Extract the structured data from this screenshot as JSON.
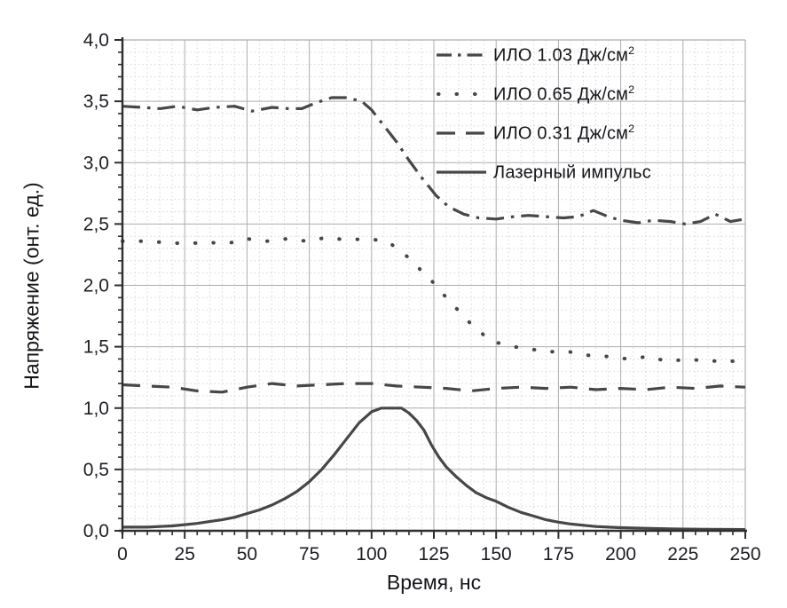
{
  "colors": {
    "line": "#474747",
    "grid_major": "#aeaeae",
    "grid_minor": "#d7d7d7",
    "axis": "#2e2e2e",
    "text": "#1d1d24"
  },
  "legend": [
    {
      "label": "ИЛО 1.03 Дж/см",
      "sup": "2",
      "style": "dashdot"
    },
    {
      "label": "ИЛО 0.65 Дж/см",
      "sup": "2",
      "style": "dotted"
    },
    {
      "label": "ИЛО 0.31 Дж/см",
      "sup": "2",
      "style": "dashed"
    },
    {
      "label": "Лазерный импульс",
      "sup": "",
      "style": "solid"
    }
  ],
  "chart_data": {
    "type": "line",
    "title": "",
    "xlabel": "Время, нс",
    "ylabel": "Напряжение (онт. ед.)",
    "xlim": [
      0,
      250
    ],
    "ylim": [
      0.0,
      4.0
    ],
    "x_ticks": [
      0,
      25,
      50,
      75,
      100,
      125,
      150,
      175,
      200,
      225,
      250
    ],
    "x_tick_labels": [
      "0",
      "25",
      "50",
      "75",
      "100",
      "125",
      "150",
      "175",
      "200",
      "225",
      "250"
    ],
    "y_ticks": [
      0,
      0.5,
      1,
      1.5,
      2,
      2.5,
      3,
      3.5,
      4
    ],
    "y_tick_labels": [
      "0,0",
      "0,5",
      "1,0",
      "1,5",
      "2,0",
      "2,5",
      "3,0",
      "3,5",
      "4,0"
    ],
    "x_minor_step": 5,
    "y_minor_step": 0.1,
    "grid": {
      "major": true,
      "minor": true
    },
    "legend_position": "top-right-inside",
    "series": [
      {
        "name": "ИЛО 1.03 Дж/см²",
        "style": "dashdot",
        "x": [
          0,
          8,
          15,
          22,
          30,
          37,
          45,
          52,
          60,
          67,
          72,
          78,
          84,
          90,
          96,
          100,
          105,
          110,
          115,
          120,
          126,
          131,
          137,
          143,
          150,
          157,
          163,
          170,
          177,
          183,
          189,
          195,
          200,
          207,
          213,
          220,
          226,
          232,
          238,
          244,
          250
        ],
        "y": [
          3.46,
          3.45,
          3.44,
          3.46,
          3.43,
          3.45,
          3.46,
          3.42,
          3.45,
          3.44,
          3.44,
          3.49,
          3.53,
          3.53,
          3.5,
          3.43,
          3.3,
          3.17,
          3.02,
          2.88,
          2.73,
          2.64,
          2.58,
          2.55,
          2.54,
          2.56,
          2.57,
          2.56,
          2.55,
          2.56,
          2.61,
          2.56,
          2.53,
          2.51,
          2.53,
          2.52,
          2.5,
          2.52,
          2.58,
          2.52,
          2.54
        ]
      },
      {
        "name": "ИЛО 0.65 Дж/см²",
        "style": "dotted",
        "x": [
          0,
          8,
          17,
          25,
          34,
          42,
          50,
          58,
          66,
          74,
          82,
          90,
          98,
          106,
          112,
          118,
          124,
          130,
          136,
          142,
          149,
          157,
          164,
          171,
          179,
          187,
          195,
          203,
          211,
          219,
          227,
          235,
          243,
          250
        ],
        "y": [
          2.36,
          2.36,
          2.35,
          2.34,
          2.35,
          2.34,
          2.38,
          2.36,
          2.38,
          2.36,
          2.39,
          2.37,
          2.38,
          2.36,
          2.28,
          2.16,
          2.04,
          1.9,
          1.77,
          1.64,
          1.54,
          1.5,
          1.48,
          1.46,
          1.46,
          1.43,
          1.42,
          1.4,
          1.42,
          1.38,
          1.4,
          1.38,
          1.39,
          1.36
        ]
      },
      {
        "name": "ИЛО 0.31 Дж/см²",
        "style": "dashed",
        "x": [
          0,
          10,
          20,
          30,
          40,
          50,
          60,
          70,
          80,
          90,
          100,
          110,
          120,
          130,
          140,
          150,
          160,
          170,
          180,
          190,
          200,
          210,
          220,
          230,
          240,
          250
        ],
        "y": [
          1.19,
          1.18,
          1.17,
          1.14,
          1.13,
          1.17,
          1.2,
          1.18,
          1.19,
          1.2,
          1.2,
          1.18,
          1.17,
          1.16,
          1.14,
          1.16,
          1.17,
          1.16,
          1.17,
          1.15,
          1.16,
          1.15,
          1.17,
          1.16,
          1.18,
          1.17
        ]
      },
      {
        "name": "Лазерный импульс",
        "style": "solid",
        "x": [
          0,
          5,
          10,
          15,
          20,
          25,
          30,
          35,
          40,
          45,
          50,
          55,
          60,
          65,
          70,
          75,
          80,
          85,
          90,
          95,
          100,
          104,
          108,
          112,
          115,
          118,
          121,
          124,
          127,
          130,
          134,
          138,
          142,
          146,
          150,
          155,
          160,
          165,
          170,
          175,
          180,
          185,
          190,
          195,
          200,
          210,
          220,
          235,
          250
        ],
        "y": [
          0.03,
          0.03,
          0.03,
          0.035,
          0.04,
          0.05,
          0.06,
          0.075,
          0.09,
          0.11,
          0.14,
          0.17,
          0.21,
          0.26,
          0.32,
          0.4,
          0.5,
          0.62,
          0.75,
          0.88,
          0.97,
          1.0,
          1.0,
          1.0,
          0.96,
          0.9,
          0.82,
          0.7,
          0.6,
          0.52,
          0.44,
          0.37,
          0.31,
          0.27,
          0.24,
          0.19,
          0.15,
          0.12,
          0.09,
          0.07,
          0.055,
          0.045,
          0.035,
          0.03,
          0.025,
          0.02,
          0.015,
          0.012,
          0.01
        ]
      }
    ]
  }
}
